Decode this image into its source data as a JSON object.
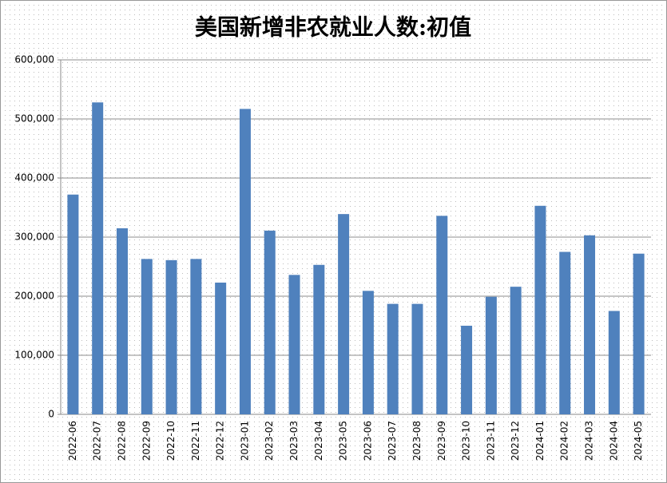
{
  "chart_data": {
    "type": "bar",
    "title": "美国新增非农就业人数:初值",
    "categories": [
      "2022-06",
      "2022-07",
      "2022-08",
      "2022-09",
      "2022-10",
      "2022-11",
      "2022-12",
      "2023-01",
      "2023-02",
      "2023-03",
      "2023-04",
      "2023-05",
      "2023-06",
      "2023-07",
      "2023-08",
      "2023-09",
      "2023-10",
      "2023-11",
      "2023-12",
      "2024-01",
      "2024-02",
      "2024-03",
      "2024-04",
      "2024-05"
    ],
    "values": [
      372000,
      528000,
      315000,
      263000,
      261000,
      263000,
      223000,
      517000,
      311000,
      236000,
      253000,
      339000,
      209000,
      187000,
      187000,
      336000,
      150000,
      199000,
      216000,
      353000,
      275000,
      303000,
      175000,
      272000
    ],
    "color": "#4f81bd",
    "ylim": [
      0,
      600000
    ],
    "yticks": [
      0,
      {
        "value": 100000,
        "label": "100,000"
      },
      {
        "value": 200000,
        "label": "200,000"
      },
      {
        "value": 300000,
        "label": "300,000"
      },
      {
        "value": 400000,
        "label": "400,000"
      },
      {
        "value": 500000,
        "label": "500,000"
      },
      {
        "value": 600000,
        "label": "600,000"
      }
    ],
    "grid": true
  }
}
